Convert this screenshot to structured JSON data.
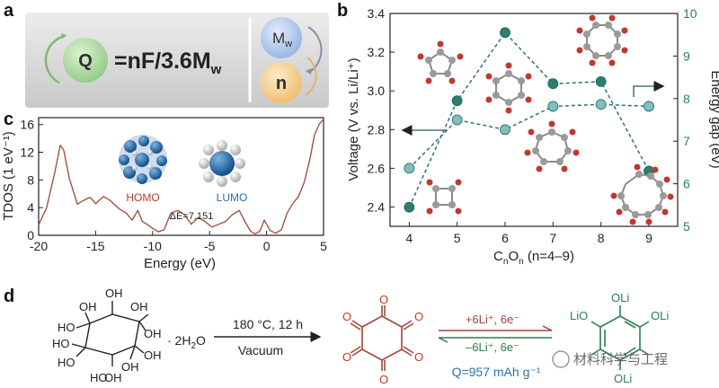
{
  "panels": {
    "a": {
      "label": "a",
      "q_symbol": "Q",
      "equation": "=nF/3.6M",
      "equation_sub": "w",
      "mw_symbol": "M",
      "mw_sub": "w",
      "n_symbol": "n",
      "colors": {
        "q_circle": "#a8d99a",
        "mw_circle": "#a9c4ea",
        "n_circle": "#f5cf8f",
        "box": "#d9d9d9"
      }
    },
    "b": {
      "label": "b"
    },
    "c": {
      "label": "c",
      "homo_label": "HOMO",
      "lumo_label": "LUMO",
      "gap_label": "ΔE=7.151"
    },
    "d": {
      "label": "d",
      "reagent": "· 2H",
      "reagent_sub": "2",
      "reagent_tail": "O",
      "condition_top": "180 °C, 12 h",
      "condition_bottom": "Vacuum",
      "forward": "+6Li⁺, 6e⁻",
      "reverse": "–6Li⁺, 6e⁻",
      "capacity": "Q=957 mAh g⁻¹",
      "oh": "OH",
      "ho": "HO",
      "o": "O",
      "oli": "OLi",
      "lio": "LiO",
      "watermark": "材料科学与工程"
    }
  },
  "chart_data": [
    {
      "type": "line",
      "panel": "b",
      "x": [
        4,
        5,
        6,
        7,
        8,
        9
      ],
      "xlabel": "CnOn (n=4–9)",
      "xlabel_main": "C",
      "xlabel_mid": "O",
      "xlabel_sub": "n",
      "xlabel_tail": " (n=4–9)",
      "ylabel": "Voltage (V vs. Li/Li⁺)",
      "y2label": "Energy gap (eV)",
      "ylim": [
        2.3,
        3.4
      ],
      "y2lim": [
        5,
        10
      ],
      "yticks": [
        "2.4",
        "2.6",
        "2.8",
        "3.0",
        "3.2",
        "3.4"
      ],
      "y2ticks": [
        "5",
        "6",
        "7",
        "8",
        "9",
        "10"
      ],
      "xticks": [
        "4",
        "5",
        "6",
        "7",
        "8",
        "9"
      ],
      "series": [
        {
          "axis": "left",
          "values": [
            2.6,
            2.85,
            2.8,
            2.92,
            2.93,
            2.92
          ]
        },
        {
          "axis": "right",
          "values": [
            5.45,
            7.95,
            9.55,
            8.35,
            8.4,
            6.3
          ]
        }
      ],
      "colors": {
        "left_series": "#7fbfbf",
        "right_series": "#2a8070",
        "dash": "#2f6f7a"
      }
    },
    {
      "type": "line",
      "panel": "c",
      "xlabel": "Energy (eV)",
      "ylabel": "TDOS (1 eV⁻¹)",
      "xlim": [
        -20,
        5
      ],
      "ylim": [
        0,
        17
      ],
      "xticks": [
        "-20",
        "-15",
        "-10",
        "-5",
        "0",
        "5"
      ],
      "yticks": [
        "0",
        "4",
        "8",
        "12",
        "16"
      ],
      "series": [
        {
          "x": [
            -20,
            -19.3,
            -18.6,
            -18.1,
            -17.8,
            -17.3,
            -16.6,
            -16.1,
            -15.5,
            -15.0,
            -14.3,
            -13.7,
            -13.0,
            -12.3,
            -11.8,
            -11.3,
            -10.9,
            -10.5,
            -10.0,
            -9.5,
            -9.0,
            -8.4,
            -7.8,
            -7.2,
            -6.6,
            -6.0,
            -5.4,
            -4.8,
            -4.2,
            -3.6,
            -3.0,
            -2.4,
            -1.9,
            -1.4,
            -1.0,
            -0.6,
            -0.2,
            0.3,
            0.8,
            1.3,
            1.8,
            2.3,
            2.8,
            3.3,
            3.8,
            4.2,
            4.6,
            5.0
          ],
          "values": [
            1.5,
            4.0,
            9.0,
            13.0,
            12.3,
            8.2,
            4.5,
            5.0,
            5.5,
            4.6,
            5.6,
            5.0,
            3.9,
            3.2,
            2.2,
            3.6,
            2.0,
            1.6,
            1.0,
            0.5,
            0.8,
            3.2,
            3.6,
            3.0,
            1.6,
            2.6,
            2.0,
            1.2,
            1.6,
            2.0,
            3.0,
            3.6,
            2.0,
            0.6,
            0.2,
            0.6,
            2.2,
            0.7,
            0.3,
            0.8,
            3.2,
            4.6,
            5.6,
            7.6,
            11.0,
            14.5,
            16.0,
            16.8
          ]
        }
      ],
      "colors": {
        "line": "#a0463a",
        "homo": "#2e6fa8",
        "lumo": "#2e6fa8"
      }
    }
  ]
}
